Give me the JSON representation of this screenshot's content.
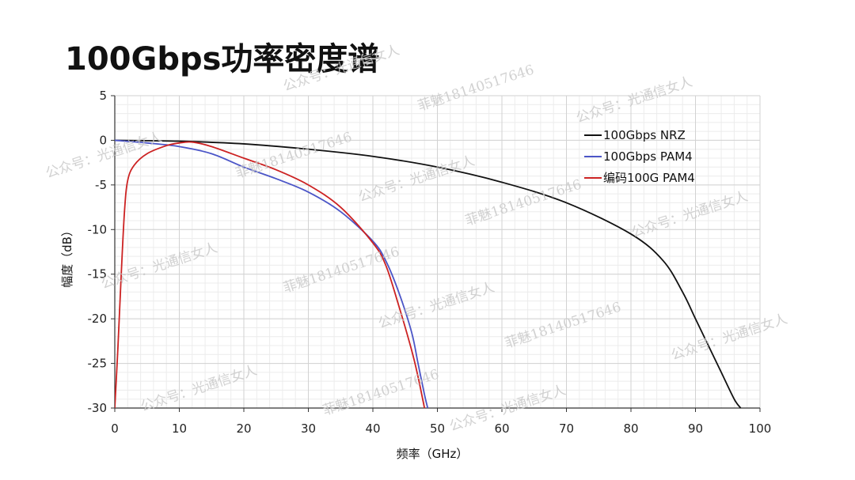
{
  "slide": {
    "title": "100Gbps功率密度谱"
  },
  "watermarks": [
    "公众号：光通信女人",
    "菲魅18140517646"
  ],
  "chart_data": {
    "type": "line",
    "xlabel": "频率（GHz）",
    "ylabel": "幅度（dB）",
    "xlim": [
      0,
      100
    ],
    "ylim": [
      -30,
      5
    ],
    "xticks": [
      0,
      10,
      20,
      30,
      40,
      50,
      60,
      70,
      80,
      90,
      100
    ],
    "yticks": [
      5,
      0,
      -5,
      -10,
      -15,
      -20,
      -25,
      -30
    ],
    "grid": true,
    "minor_grid": true,
    "legend_position": "top-right",
    "series": [
      {
        "name": "100Gbps NRZ",
        "color": "#111111",
        "points": [
          [
            0,
            0
          ],
          [
            10,
            -0.1
          ],
          [
            20,
            -0.4
          ],
          [
            30,
            -1.0
          ],
          [
            40,
            -1.8
          ],
          [
            50,
            -3.0
          ],
          [
            60,
            -4.7
          ],
          [
            70,
            -7.0
          ],
          [
            80,
            -10.5
          ],
          [
            85,
            -13.5
          ],
          [
            88,
            -17
          ],
          [
            90,
            -20
          ],
          [
            92,
            -23
          ],
          [
            94,
            -26
          ],
          [
            96,
            -29
          ],
          [
            97,
            -30
          ]
        ]
      },
      {
        "name": "100Gbps PAM4",
        "color": "#4b55c7",
        "points": [
          [
            0,
            0
          ],
          [
            5,
            -0.3
          ],
          [
            10,
            -0.7
          ],
          [
            15,
            -1.5
          ],
          [
            20,
            -3.0
          ],
          [
            25,
            -4.3
          ],
          [
            30,
            -5.8
          ],
          [
            35,
            -8.0
          ],
          [
            40,
            -11.3
          ],
          [
            42,
            -13.5
          ],
          [
            44,
            -17
          ],
          [
            46,
            -21.5
          ],
          [
            47,
            -25
          ],
          [
            48,
            -28.5
          ],
          [
            48.5,
            -30
          ]
        ]
      },
      {
        "name": "编码100G PAM4",
        "color": "#cc2222",
        "points": [
          [
            0,
            -30
          ],
          [
            0.5,
            -23
          ],
          [
            1,
            -15
          ],
          [
            1.5,
            -8
          ],
          [
            2,
            -4.5
          ],
          [
            3,
            -2.8
          ],
          [
            5,
            -1.5
          ],
          [
            8,
            -0.6
          ],
          [
            10,
            -0.3
          ],
          [
            12,
            -0.2
          ],
          [
            15,
            -0.7
          ],
          [
            20,
            -2.0
          ],
          [
            25,
            -3.3
          ],
          [
            30,
            -5.0
          ],
          [
            35,
            -7.5
          ],
          [
            40,
            -11.5
          ],
          [
            42,
            -14
          ],
          [
            44,
            -18.5
          ],
          [
            46,
            -23.5
          ],
          [
            47,
            -26.5
          ],
          [
            48,
            -30
          ]
        ]
      }
    ]
  }
}
